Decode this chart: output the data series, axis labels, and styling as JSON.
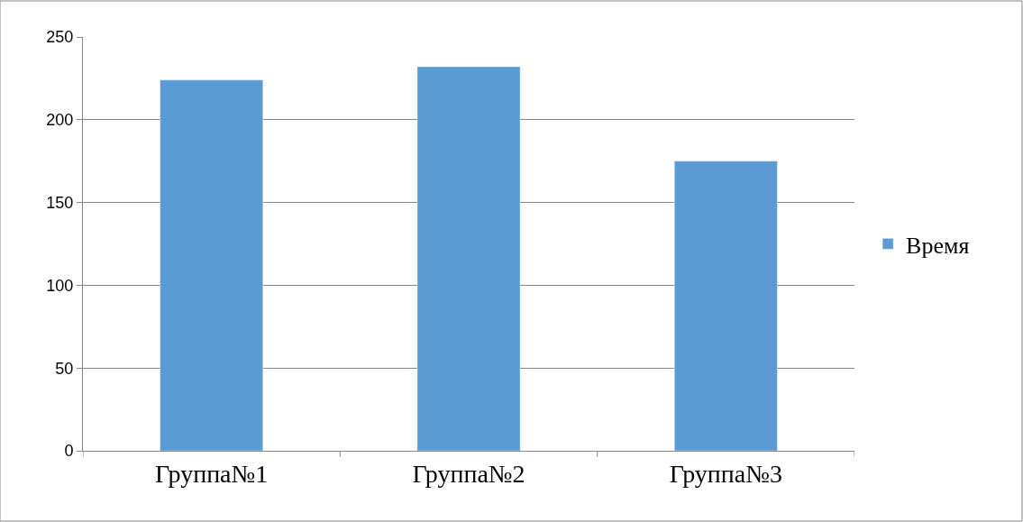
{
  "chart_data": {
    "type": "bar",
    "categories": [
      "Группа№1",
      "Группа№2",
      "Группа№3"
    ],
    "series": [
      {
        "name": "Время",
        "color": "#5b9bd5",
        "values": [
          224,
          232,
          175
        ]
      }
    ],
    "ylim": [
      0,
      250
    ],
    "yticks": [
      0,
      50,
      100,
      150,
      200,
      250
    ],
    "grid": "y",
    "legend": "right"
  }
}
